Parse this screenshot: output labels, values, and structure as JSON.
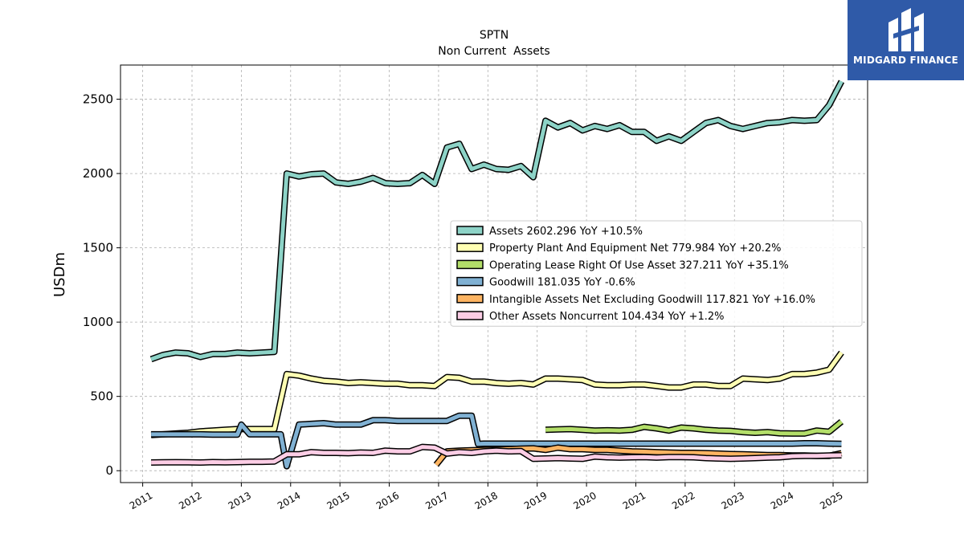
{
  "chart_data": {
    "type": "line",
    "title": "SPTN",
    "subtitle": "Non Current  Assets",
    "xlabel": "",
    "ylabel": "USDm",
    "xlim": [
      2010.55,
      2025.7
    ],
    "ylim": [
      -80,
      2730
    ],
    "x_ticks": [
      "2011",
      "2012",
      "2013",
      "2014",
      "2015",
      "2016",
      "2017",
      "2018",
      "2019",
      "2020",
      "2021",
      "2022",
      "2023",
      "2024",
      "2025"
    ],
    "y_ticks": [
      0,
      500,
      1000,
      1500,
      2000,
      2500
    ],
    "grid": true,
    "legend_position": "center-right",
    "series": [
      {
        "name": "Assets  2602.296 YoY +10.5%",
        "color": "#8dd3c7",
        "x": [
          2011.17,
          2011.42,
          2011.67,
          2011.92,
          2012.17,
          2012.42,
          2012.67,
          2012.92,
          2013.17,
          2013.42,
          2013.67,
          2013.92,
          2014.17,
          2014.42,
          2014.67,
          2014.92,
          2015.17,
          2015.42,
          2015.67,
          2015.92,
          2016.17,
          2016.42,
          2016.67,
          2016.92,
          2017.17,
          2017.42,
          2017.67,
          2017.92,
          2018.17,
          2018.42,
          2018.67,
          2018.92,
          2019.17,
          2019.42,
          2019.67,
          2019.92,
          2020.17,
          2020.42,
          2020.67,
          2020.92,
          2021.17,
          2021.42,
          2021.67,
          2021.92,
          2022.17,
          2022.42,
          2022.67,
          2022.92,
          2023.17,
          2023.42,
          2023.67,
          2023.92,
          2024.17,
          2024.42,
          2024.67,
          2024.92,
          2025.17
        ],
        "y": [
          750,
          780,
          795,
          790,
          765,
          785,
          785,
          795,
          790,
          795,
          800,
          2000,
          1980,
          1995,
          2000,
          1940,
          1930,
          1945,
          1970,
          1935,
          1930,
          1935,
          1990,
          1930,
          2175,
          2200,
          2030,
          2060,
          2030,
          2025,
          2050,
          1975,
          2355,
          2310,
          2340,
          2290,
          2320,
          2300,
          2325,
          2280,
          2280,
          2220,
          2250,
          2220,
          2280,
          2340,
          2360,
          2320,
          2300,
          2320,
          2340,
          2345,
          2360,
          2355,
          2360,
          2460,
          2620
        ]
      },
      {
        "name": "Property Plant And Equipment Net  779.984 YoY +20.2%",
        "color": "#ffffb3",
        "x": [
          2011.17,
          2011.42,
          2011.67,
          2011.92,
          2012.17,
          2012.42,
          2012.67,
          2012.92,
          2013.17,
          2013.42,
          2013.67,
          2013.92,
          2014.17,
          2014.42,
          2014.67,
          2014.92,
          2015.17,
          2015.42,
          2015.67,
          2015.92,
          2016.17,
          2016.42,
          2016.67,
          2016.92,
          2017.17,
          2017.42,
          2017.67,
          2017.92,
          2018.17,
          2018.42,
          2018.67,
          2018.92,
          2019.17,
          2019.42,
          2019.67,
          2019.92,
          2020.17,
          2020.42,
          2020.67,
          2020.92,
          2021.17,
          2021.42,
          2021.67,
          2021.92,
          2022.17,
          2022.42,
          2022.67,
          2022.92,
          2023.17,
          2023.42,
          2023.67,
          2023.92,
          2024.17,
          2024.42,
          2024.67,
          2024.92,
          2025.17
        ],
        "y": [
          240,
          245,
          250,
          255,
          265,
          270,
          275,
          280,
          280,
          280,
          280,
          650,
          640,
          620,
          605,
          600,
          590,
          595,
          590,
          585,
          585,
          575,
          575,
          570,
          630,
          625,
          600,
          600,
          590,
          585,
          590,
          580,
          620,
          620,
          615,
          610,
          580,
          575,
          575,
          580,
          580,
          570,
          560,
          560,
          580,
          580,
          570,
          570,
          620,
          615,
          610,
          620,
          650,
          650,
          660,
          680,
          795
        ]
      },
      {
        "name": "Operating Lease Right Of Use Asset  327.211 YoY +35.1%",
        "color": "#b3de69",
        "x": [
          2019.17,
          2019.42,
          2019.67,
          2019.92,
          2020.17,
          2020.42,
          2020.67,
          2020.92,
          2021.17,
          2021.42,
          2021.67,
          2021.92,
          2022.17,
          2022.42,
          2022.67,
          2022.92,
          2023.17,
          2023.42,
          2023.67,
          2023.92,
          2024.17,
          2024.42,
          2024.67,
          2024.92,
          2025.17
        ],
        "y": [
          275,
          278,
          280,
          275,
          270,
          272,
          270,
          275,
          295,
          285,
          270,
          290,
          285,
          275,
          270,
          268,
          260,
          255,
          260,
          252,
          250,
          250,
          270,
          262,
          330
        ]
      },
      {
        "name": "Goodwill  181.035 YoY -0.6%",
        "color": "#80b1d3",
        "x": [
          2011.17,
          2011.42,
          2011.67,
          2011.92,
          2012.17,
          2012.42,
          2012.67,
          2012.92,
          2013.0,
          2013.17,
          2013.42,
          2013.67,
          2013.8,
          2013.92,
          2014.17,
          2014.42,
          2014.67,
          2014.92,
          2015.17,
          2015.42,
          2015.67,
          2015.92,
          2016.17,
          2016.42,
          2016.67,
          2016.92,
          2017.17,
          2017.42,
          2017.67,
          2017.8,
          2017.92,
          2018.17,
          2018.42,
          2018.67,
          2018.92,
          2019.17,
          2019.42,
          2019.67,
          2019.92,
          2020.17,
          2020.42,
          2020.67,
          2020.92,
          2021.17,
          2021.42,
          2021.67,
          2021.92,
          2022.17,
          2022.42,
          2022.67,
          2022.92,
          2023.17,
          2023.42,
          2023.67,
          2023.92,
          2024.17,
          2024.42,
          2024.67,
          2024.92,
          2025.17
        ],
        "y": [
          245,
          245,
          245,
          245,
          245,
          243,
          243,
          243,
          310,
          245,
          245,
          245,
          245,
          30,
          310,
          315,
          320,
          310,
          310,
          310,
          340,
          340,
          335,
          335,
          335,
          335,
          335,
          370,
          370,
          180,
          182,
          182,
          182,
          182,
          182,
          182,
          182,
          182,
          182,
          182,
          182,
          182,
          182,
          182,
          182,
          182,
          182,
          182,
          182,
          182,
          182,
          182,
          182,
          182,
          182,
          182,
          185,
          185,
          182,
          181
        ]
      },
      {
        "name": "Intangible Assets Net Excluding Goodwill  117.821 YoY +16.0%",
        "color": "#fdb462",
        "x": [
          2011.17,
          2011.42,
          2011.67,
          2011.92,
          2012.17,
          2012.42,
          2012.67,
          2012.92,
          2013.17,
          2013.42,
          2013.67,
          2013.92,
          2014.17,
          2014.42,
          2014.67,
          2014.92,
          2015.17,
          2015.42,
          2015.67,
          2015.92,
          2016.17,
          2016.42,
          2016.67,
          2016.92,
          2016.95,
          2017.17,
          2017.42,
          2017.67,
          2017.92,
          2018.17,
          2018.42,
          2018.67,
          2018.92,
          2019.17,
          2019.42,
          2019.67,
          2019.92,
          2020.17,
          2020.42,
          2020.67,
          2020.92,
          2021.17,
          2021.42,
          2021.67,
          2021.92,
          2022.17,
          2022.42,
          2022.67,
          2022.92,
          2023.17,
          2023.42,
          2023.67,
          2023.92,
          2024.17,
          2024.42,
          2024.67,
          2024.92,
          2025.17
        ],
        "y": [
          null,
          null,
          null,
          null,
          null,
          null,
          null,
          null,
          null,
          null,
          null,
          null,
          null,
          null,
          null,
          null,
          null,
          null,
          null,
          null,
          null,
          null,
          null,
          null,
          40,
          130,
          135,
          138,
          140,
          142,
          145,
          148,
          150,
          140,
          155,
          145,
          145,
          140,
          140,
          135,
          130,
          128,
          125,
          122,
          120,
          120,
          118,
          115,
          112,
          110,
          108,
          105,
          105,
          102,
          102,
          100,
          100,
          118
        ]
      },
      {
        "name": "Other Assets Noncurrent  104.434 YoY +1.2%",
        "color": "#fccde5",
        "x": [
          2011.17,
          2011.42,
          2011.67,
          2011.92,
          2012.17,
          2012.42,
          2012.67,
          2012.92,
          2013.17,
          2013.42,
          2013.67,
          2013.92,
          2014.17,
          2014.42,
          2014.67,
          2014.92,
          2015.17,
          2015.42,
          2015.67,
          2015.92,
          2016.17,
          2016.42,
          2016.67,
          2016.92,
          2017.17,
          2017.42,
          2017.67,
          2017.92,
          2018.17,
          2018.42,
          2018.67,
          2018.92,
          2019.17,
          2019.42,
          2019.67,
          2019.92,
          2020.17,
          2020.42,
          2020.67,
          2020.92,
          2021.17,
          2021.42,
          2021.67,
          2021.92,
          2022.17,
          2022.42,
          2022.67,
          2022.92,
          2023.17,
          2023.42,
          2023.67,
          2023.92,
          2024.17,
          2024.42,
          2024.67,
          2024.92,
          2025.17
        ],
        "y": [
          55,
          56,
          57,
          56,
          55,
          58,
          56,
          58,
          60,
          60,
          62,
          110,
          110,
          125,
          120,
          120,
          118,
          122,
          120,
          135,
          130,
          130,
          160,
          155,
          115,
          125,
          120,
          130,
          135,
          130,
          132,
          80,
          82,
          85,
          82,
          80,
          95,
          90,
          88,
          90,
          92,
          88,
          92,
          92,
          90,
          85,
          82,
          80,
          82,
          85,
          88,
          90,
          98,
          100,
          100,
          102,
          104
        ]
      }
    ]
  },
  "logo": {
    "text": "MIDGARD FINANCE",
    "color": "#2f5aa8"
  }
}
